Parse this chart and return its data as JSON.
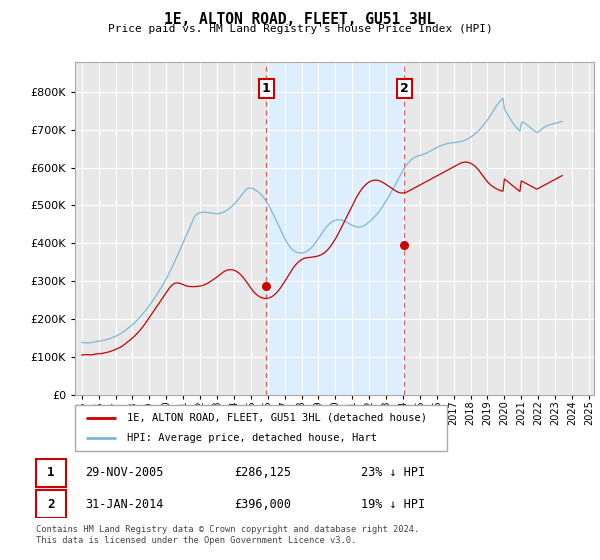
{
  "title": "1E, ALTON ROAD, FLEET, GU51 3HL",
  "subtitle": "Price paid vs. HM Land Registry's House Price Index (HPI)",
  "legend_line1": "1E, ALTON ROAD, FLEET, GU51 3HL (detached house)",
  "legend_line2": "HPI: Average price, detached house, Hart",
  "annotation1_label": "1",
  "annotation1_date": "29-NOV-2005",
  "annotation1_price": "£286,125",
  "annotation1_hpi": "23% ↓ HPI",
  "annotation1_year": 2005.917,
  "annotation1_value": 286125,
  "annotation2_label": "2",
  "annotation2_date": "31-JAN-2014",
  "annotation2_price": "£396,000",
  "annotation2_hpi": "19% ↓ HPI",
  "annotation2_year": 2014.083,
  "annotation2_value": 396000,
  "hpi_color": "#7ab8d9",
  "price_color": "#cc0000",
  "vline_color": "#e06060",
  "span_color": "#ddeeff",
  "ylim": [
    0,
    880000
  ],
  "yticks": [
    0,
    100000,
    200000,
    300000,
    400000,
    500000,
    600000,
    700000,
    800000
  ],
  "footer": "Contains HM Land Registry data © Crown copyright and database right 2024.\nThis data is licensed under the Open Government Licence v3.0.",
  "hpi_data_monthly": {
    "start_year": 1995,
    "start_month": 1,
    "values": [
      138000,
      138500,
      137800,
      137200,
      136800,
      137000,
      137500,
      138200,
      139000,
      139800,
      140500,
      141000,
      141500,
      142000,
      142800,
      143500,
      144200,
      145000,
      146000,
      147200,
      148500,
      150000,
      151500,
      153000,
      154500,
      156000,
      158000,
      160000,
      162500,
      165000,
      167500,
      170000,
      173000,
      176000,
      179000,
      182000,
      185000,
      188500,
      192000,
      196000,
      200000,
      204000,
      208000,
      212500,
      217000,
      221500,
      226000,
      231000,
      236000,
      241000,
      246500,
      252000,
      257500,
      263000,
      269000,
      275000,
      281000,
      287000,
      293500,
      300000,
      307000,
      314000,
      321000,
      328500,
      336000,
      344000,
      352000,
      360000,
      368500,
      377000,
      385500,
      394000,
      402500,
      411000,
      419500,
      428000,
      436500,
      445000,
      453500,
      462000,
      470000,
      475000,
      478000,
      480000,
      481000,
      481500,
      482000,
      482500,
      482000,
      481500,
      481000,
      480500,
      480000,
      479500,
      479000,
      478500,
      478000,
      478500,
      479000,
      480000,
      481500,
      483000,
      485000,
      487500,
      490000,
      493000,
      496000,
      499500,
      503000,
      507000,
      511000,
      515500,
      520000,
      525000,
      530000,
      535000,
      540000,
      543000,
      545000,
      546000,
      546000,
      545000,
      543500,
      541500,
      539000,
      536500,
      533500,
      530000,
      526000,
      521500,
      516500,
      511000,
      505000,
      498500,
      491500,
      484000,
      476500,
      468500,
      460500,
      452500,
      444500,
      436500,
      428500,
      421000,
      413500,
      406500,
      400000,
      394500,
      389500,
      385500,
      382000,
      379500,
      377500,
      376000,
      375000,
      374500,
      374500,
      375000,
      376000,
      377500,
      379500,
      382000,
      385000,
      388500,
      392500,
      397000,
      402000,
      407500,
      413000,
      418500,
      424000,
      429500,
      435000,
      440000,
      444500,
      448500,
      452000,
      455000,
      457500,
      459500,
      461000,
      462000,
      462500,
      462500,
      462000,
      461000,
      459500,
      457500,
      455500,
      453500,
      451500,
      449500,
      447500,
      446000,
      444500,
      443500,
      443000,
      443000,
      443500,
      444500,
      446000,
      448000,
      450500,
      453500,
      456500,
      460000,
      463500,
      467000,
      471000,
      475000,
      479500,
      484000,
      489000,
      494500,
      500000,
      506000,
      512000,
      518000,
      524500,
      531000,
      537500,
      544000,
      551000,
      558000,
      565000,
      572000,
      579000,
      586000,
      592500,
      598500,
      604000,
      609000,
      613500,
      617500,
      621000,
      624000,
      626500,
      628500,
      630000,
      631000,
      632000,
      633000,
      634500,
      636000,
      637500,
      639000,
      641000,
      643000,
      645000,
      647000,
      649000,
      651000,
      653000,
      655000,
      656500,
      658000,
      659500,
      661000,
      662000,
      663000,
      664000,
      664500,
      665000,
      665500,
      666000,
      666500,
      667000,
      667500,
      668000,
      669000,
      670000,
      671000,
      672500,
      674000,
      676000,
      678000,
      680500,
      683000,
      685500,
      688500,
      692000,
      695500,
      699000,
      703000,
      707500,
      712000,
      716500,
      721000,
      726000,
      731500,
      737000,
      743000,
      749000,
      755000,
      761000,
      766500,
      771500,
      776000,
      779500,
      782500,
      755000,
      748000,
      742000,
      736000,
      730000,
      724000,
      718000,
      713000,
      708000,
      704000,
      700000,
      697000,
      718000,
      721000,
      719000,
      716000,
      713000,
      710000,
      707000,
      704000,
      701000,
      698000,
      695000,
      693000,
      694000,
      697000,
      700000,
      703000,
      706000,
      708000,
      710000,
      712000,
      713000,
      714000,
      715000,
      716000,
      717000,
      718000,
      719000,
      720000,
      721000,
      722000
    ]
  },
  "price_data_monthly": {
    "start_year": 1995,
    "start_month": 1,
    "values": [
      105000,
      105500,
      106000,
      106200,
      106000,
      105800,
      105500,
      105800,
      106200,
      107000,
      107800,
      108000,
      108200,
      108500,
      109000,
      109800,
      110500,
      111200,
      112000,
      113000,
      114200,
      115500,
      117000,
      118500,
      120000,
      121500,
      123000,
      125000,
      127000,
      129500,
      132000,
      135000,
      138000,
      141000,
      144000,
      147000,
      150000,
      153500,
      157000,
      161000,
      165000,
      169000,
      173500,
      178000,
      183000,
      188000,
      193500,
      199000,
      204500,
      210000,
      215500,
      221000,
      226500,
      232000,
      237500,
      243000,
      248500,
      254000,
      259500,
      265000,
      270500,
      276000,
      281000,
      285500,
      289500,
      292500,
      294500,
      295500,
      295500,
      295000,
      294000,
      292500,
      291000,
      289500,
      288000,
      287000,
      286200,
      285800,
      285600,
      285500,
      285600,
      285800,
      286200,
      286700,
      287300,
      288000,
      289000,
      290500,
      292000,
      294000,
      296000,
      298500,
      301000,
      303500,
      306000,
      308500,
      311000,
      314000,
      317000,
      320000,
      323000,
      325500,
      327500,
      329000,
      330000,
      330500,
      330500,
      330000,
      329000,
      327500,
      325500,
      323000,
      320000,
      316500,
      312500,
      308000,
      303000,
      298000,
      292500,
      287000,
      282000,
      277000,
      272500,
      268500,
      265000,
      262000,
      259500,
      257500,
      256000,
      255000,
      254500,
      254500,
      255000,
      256000,
      257500,
      259500,
      262000,
      265000,
      268500,
      272500,
      277000,
      282000,
      287500,
      293000,
      299000,
      305000,
      311000,
      317000,
      323000,
      329000,
      334500,
      339500,
      344000,
      348000,
      351500,
      354500,
      357000,
      359000,
      360500,
      361500,
      362000,
      362500,
      363000,
      363500,
      364000,
      364500,
      365000,
      366000,
      367000,
      368500,
      370000,
      372000,
      374500,
      377500,
      381000,
      385000,
      389500,
      394500,
      400000,
      405500,
      411500,
      418000,
      425000,
      432000,
      439500,
      447000,
      454500,
      462000,
      469500,
      477000,
      484500,
      492000,
      499500,
      507000,
      514500,
      521500,
      528000,
      534000,
      539500,
      544500,
      549000,
      553000,
      556500,
      559500,
      562000,
      564000,
      565500,
      566500,
      567000,
      567000,
      566500,
      565500,
      564000,
      562000,
      560000,
      558000,
      555500,
      553000,
      550500,
      548000,
      545500,
      543000,
      540500,
      538000,
      536000,
      534500,
      533500,
      533000,
      533000,
      533500,
      534500,
      536000,
      538000,
      540000,
      542000,
      544000,
      546000,
      548000,
      550000,
      552000,
      554000,
      556000,
      558000,
      560000,
      562000,
      564000,
      566000,
      568000,
      570000,
      572000,
      574000,
      576000,
      578000,
      580000,
      582000,
      584000,
      586000,
      588000,
      590000,
      592000,
      594000,
      596000,
      598000,
      600000,
      602000,
      604000,
      606000,
      608000,
      610000,
      612000,
      613000,
      614000,
      614500,
      614500,
      614000,
      613000,
      611500,
      609500,
      607000,
      604000,
      600500,
      596500,
      592000,
      587000,
      582000,
      577000,
      572000,
      567000,
      562500,
      558500,
      555000,
      552000,
      549500,
      547000,
      545000,
      543000,
      541000,
      539500,
      538500,
      538000,
      570000,
      567000,
      564000,
      561000,
      558000,
      555000,
      552000,
      549000,
      546000,
      543000,
      540000,
      537000,
      565000,
      563000,
      561000,
      559000,
      557000,
      555000,
      553000,
      551000,
      549000,
      547000,
      545000,
      543000,
      545000,
      547000,
      549000,
      551000,
      553000,
      555000,
      557000,
      559000,
      561000,
      563000,
      565000,
      567000,
      569000,
      571000,
      573000,
      575000,
      577000,
      579000
    ]
  }
}
